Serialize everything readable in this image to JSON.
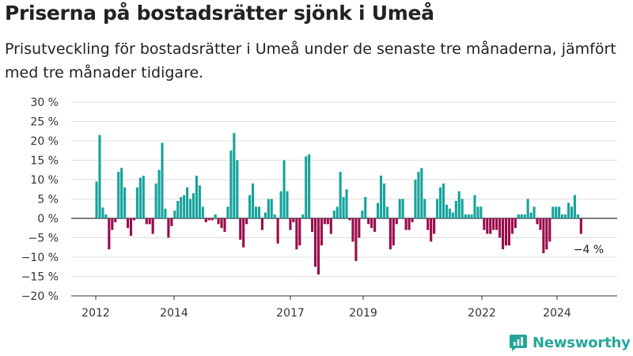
{
  "header": {
    "title": "Priserna på bostadsrätter sjönk i Umeå",
    "subtitle": "Prisutveckling för bostadsrätter i Umeå under de senaste tre månaderna, jämfört med tre månader tidigare."
  },
  "brand": {
    "name": "Newsworthy",
    "icon": "bar-chart-logo-icon"
  },
  "colors": {
    "positive": "#16a39c",
    "negative": "#9a0b4a",
    "grid": "#dddddd",
    "axis": "#333333"
  },
  "chart_data": {
    "type": "bar",
    "title": "Priserna på bostadsrätter sjönk i Umeå",
    "ylim": [
      -20,
      30
    ],
    "y_ticks": [
      -20,
      -15,
      -10,
      -5,
      0,
      5,
      10,
      15,
      20,
      25,
      30
    ],
    "y_tick_labels": [
      "−20 %",
      "−15 %",
      "−10 %",
      "−5 %",
      "0 %",
      "5 %",
      "10 %",
      "15 %",
      "20 %",
      "25 %",
      "30 %"
    ],
    "x_ticks": [
      "2012",
      "2014",
      "2017",
      "2019",
      "2022",
      "2024"
    ],
    "grid": true,
    "annotation": {
      "text": "−4 %",
      "value": -4
    },
    "series": [
      {
        "values": [
          9.5,
          21.5,
          2.8,
          1.0,
          -8.0,
          -3.0,
          -1.0,
          12.0,
          13.0,
          8.0,
          -2.5,
          -4.5,
          -0.5,
          8.0,
          10.5,
          11.0,
          -1.5,
          -1.5,
          -4.0,
          9.0,
          12.5,
          19.5,
          2.5,
          -5.0,
          -2.0,
          2.0,
          4.5,
          5.5,
          6.0,
          8.0,
          5.0,
          6.5,
          11.0,
          8.5,
          3.0,
          -1.0,
          -0.5,
          -0.5,
          1.0,
          -1.5,
          -2.5,
          -3.5,
          3.0,
          17.5,
          22.0,
          15.0,
          -5.5,
          -7.5,
          -1.5,
          6.0,
          9.0,
          3.0,
          3.0,
          -3.0,
          1.5,
          5.0,
          5.0,
          1.0,
          -6.5,
          7.0,
          15.0,
          7.0,
          -3.0,
          -1.0,
          -8.0,
          -7.0,
          1.0,
          16.0,
          16.5,
          -3.5,
          -12.5,
          -14.5,
          -7.0,
          -1.5,
          -1.5,
          -4.0,
          2.0,
          3.0,
          12.0,
          5.5,
          7.5,
          -0.5,
          -6.0,
          -11.0,
          -5.0,
          2.0,
          5.5,
          -1.5,
          -2.5,
          -3.5,
          4.0,
          11.0,
          9.0,
          3.0,
          -8.0,
          -7.0,
          -1.5,
          5.0,
          5.0,
          -3.0,
          -3.0,
          -1.0,
          10.0,
          12.0,
          13.0,
          5.0,
          -3.0,
          -6.0,
          -4.0,
          5.0,
          8.0,
          9.0,
          3.5,
          2.5,
          1.5,
          4.5,
          7.0,
          5.0,
          1.0,
          1.0,
          1.0,
          6.0,
          3.0,
          3.0,
          -3.0,
          -4.0,
          -4.0,
          -3.0,
          -3.0,
          -5.0,
          -8.0,
          -7.0,
          -7.0,
          -4.0,
          -2.5,
          1.0,
          1.0,
          1.0,
          5.0,
          1.5,
          3.0,
          -1.5,
          -3.0,
          -9.0,
          -8.0,
          -6.0,
          3.0,
          3.0,
          3.0,
          1.0,
          1.0,
          4.0,
          3.0,
          6.0,
          1.0,
          -4.0
        ]
      }
    ]
  }
}
